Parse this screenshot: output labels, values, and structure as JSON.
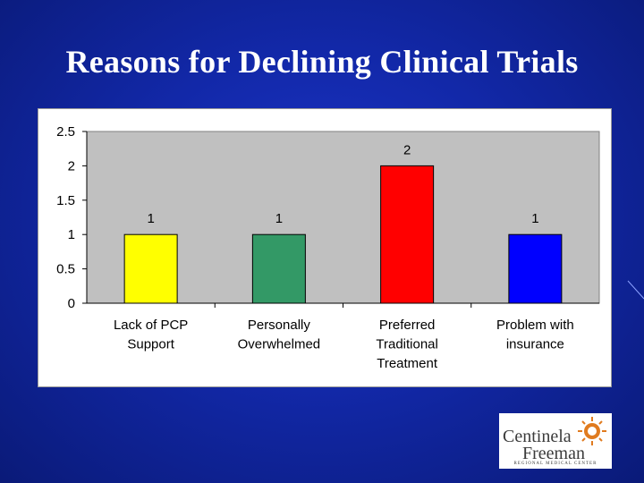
{
  "slide": {
    "title": "Reasons for Declining Clinical Trials"
  },
  "chart_data": {
    "type": "bar",
    "categories": [
      [
        "Lack of PCP",
        "Support"
      ],
      [
        "Personally",
        "Overwhelmed"
      ],
      [
        "Preferred",
        "Traditional",
        "Treatment"
      ],
      [
        "Problem with",
        "insurance"
      ]
    ],
    "values": [
      1,
      1,
      2,
      1
    ],
    "data_labels": [
      "1",
      "1",
      "2",
      "1"
    ],
    "bar_colors": [
      "#ffff00",
      "#339966",
      "#ff0000",
      "#0000ff"
    ],
    "ylim": [
      0,
      2.5
    ],
    "yticks": [
      "0",
      "0.5",
      "1",
      "1.5",
      "2",
      "2.5"
    ],
    "ytick_values": [
      0,
      0.5,
      1,
      1.5,
      2,
      2.5
    ],
    "plot_background": "#c0c0c0",
    "grid": false,
    "legend": "none",
    "title": "",
    "xlabel": "",
    "ylabel": ""
  },
  "logo": {
    "line1": "Centinela",
    "line2": "Freeman",
    "subtitle": "REGIONAL MEDICAL CENTER",
    "accent_color": "#e07b1f"
  }
}
